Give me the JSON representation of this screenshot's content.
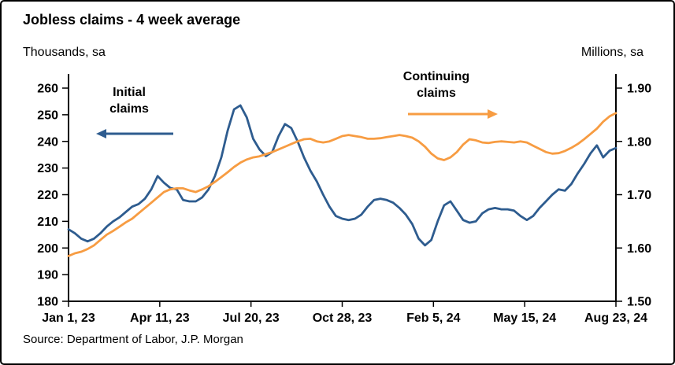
{
  "header": {
    "title": "Jobless claims - 4 week average"
  },
  "footer": {
    "source": "Source: Department of Labor, J.P. Morgan"
  },
  "chart_data": {
    "type": "line",
    "title": "Jobless claims - 4 week average",
    "left_axis": {
      "label": "Thousands, sa",
      "range": [
        180,
        260
      ],
      "ticks": [
        260,
        250,
        240,
        230,
        220,
        210,
        200,
        190,
        180
      ]
    },
    "right_axis": {
      "label": "Millions, sa",
      "range": [
        1.5,
        1.9
      ],
      "ticks": [
        "1.90",
        "1.80",
        "1.70",
        "1.60",
        "1.50"
      ]
    },
    "x_axis": {
      "tick_labels": [
        "Jan 1, 23",
        "Apr 11, 23",
        "Jul 20, 23",
        "Oct 28, 23",
        "Feb 5, 24",
        "May 15, 24",
        "Aug 23, 24"
      ]
    },
    "series": [
      {
        "id": "initial-claims",
        "name": "Initial claims",
        "axis": "left",
        "color": "#2e5c8f",
        "values": [
          207,
          205.5,
          203.5,
          202.5,
          203.5,
          205.5,
          208,
          210,
          211.5,
          213.5,
          215.5,
          216.5,
          218.5,
          222,
          227,
          224.5,
          222.5,
          222,
          218,
          217.5,
          217.5,
          219,
          222,
          227,
          234,
          244,
          252,
          253.5,
          249,
          241,
          237,
          234.5,
          236,
          242,
          246.5,
          245,
          240,
          234,
          229,
          225,
          220,
          215.5,
          212,
          211,
          210.5,
          211,
          212.5,
          215.5,
          218,
          218.5,
          218,
          217,
          215,
          212.5,
          209,
          203.5,
          201,
          203,
          210,
          216,
          217.5,
          214,
          210.5,
          209.5,
          210,
          213,
          214.5,
          215,
          214.5,
          214.5,
          214,
          212,
          210.5,
          212,
          215,
          217.5,
          220,
          222,
          221.5,
          224,
          228,
          231.5,
          235.5,
          238.5,
          234,
          236.5,
          237.5
        ]
      },
      {
        "id": "continuing-claims",
        "name": "Continuing claims",
        "axis": "right",
        "color": "#f79c42",
        "values": [
          1.585,
          1.59,
          1.593,
          1.598,
          1.605,
          1.615,
          1.625,
          1.632,
          1.64,
          1.648,
          1.655,
          1.665,
          1.675,
          1.685,
          1.695,
          1.705,
          1.71,
          1.712,
          1.712,
          1.708,
          1.705,
          1.71,
          1.716,
          1.724,
          1.733,
          1.742,
          1.752,
          1.76,
          1.766,
          1.77,
          1.772,
          1.776,
          1.78,
          1.785,
          1.79,
          1.795,
          1.8,
          1.804,
          1.805,
          1.8,
          1.798,
          1.8,
          1.805,
          1.81,
          1.812,
          1.81,
          1.808,
          1.805,
          1.805,
          1.806,
          1.808,
          1.81,
          1.812,
          1.81,
          1.807,
          1.8,
          1.79,
          1.777,
          1.768,
          1.765,
          1.77,
          1.78,
          1.794,
          1.804,
          1.802,
          1.798,
          1.797,
          1.799,
          1.8,
          1.799,
          1.798,
          1.8,
          1.798,
          1.792,
          1.786,
          1.78,
          1.777,
          1.778,
          1.782,
          1.788,
          1.795,
          1.804,
          1.814,
          1.824,
          1.837,
          1.847,
          1.853
        ]
      }
    ],
    "annotations": [
      {
        "id": "initial-claims",
        "lines": [
          "Initial",
          "claims"
        ],
        "arrow_direction": "left",
        "arrow_color": "#2e5c8f"
      },
      {
        "id": "continuing-claims",
        "lines": [
          "Continuing",
          "claims"
        ],
        "arrow_direction": "right",
        "arrow_color": "#f79c42"
      }
    ],
    "legend": "none",
    "grid": "off"
  }
}
